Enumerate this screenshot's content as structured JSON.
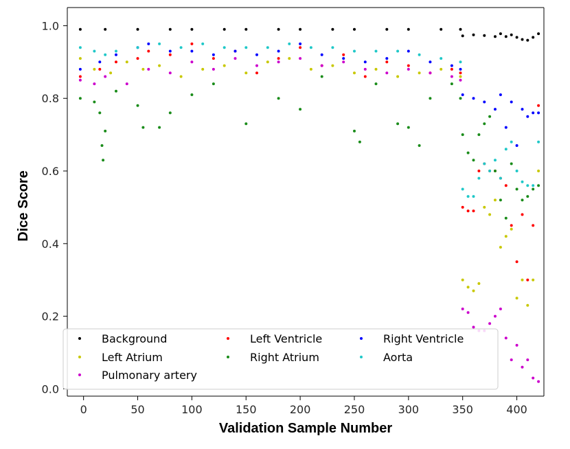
{
  "chart_data": {
    "type": "scatter",
    "xlabel": "Validation Sample Number",
    "ylabel": "Dice Score",
    "xlim": [
      -15,
      425
    ],
    "ylim": [
      -0.02,
      1.05
    ],
    "x_ticks": [
      0,
      50,
      100,
      150,
      200,
      250,
      300,
      350,
      400
    ],
    "x_tick_labels": [
      "0",
      "50",
      "100",
      "150",
      "200",
      "250",
      "300",
      "350",
      "400"
    ],
    "y_ticks": [
      0.0,
      0.2,
      0.4,
      0.6,
      0.8,
      1.0
    ],
    "y_tick_labels": [
      "0.0",
      "0.2",
      "0.4",
      "0.6",
      "0.8",
      "1.0"
    ],
    "grid": false,
    "legend_placement": "lower-left",
    "legend_columns": 3,
    "series": [
      {
        "name": "Background",
        "color": "#000000",
        "marker_size": 2.0,
        "points": [
          [
            -3,
            0.99
          ],
          [
            20,
            0.99
          ],
          [
            50,
            0.99
          ],
          [
            80,
            0.99
          ],
          [
            100,
            0.99
          ],
          [
            130,
            0.99
          ],
          [
            150,
            0.99
          ],
          [
            180,
            0.99
          ],
          [
            200,
            0.99
          ],
          [
            230,
            0.99
          ],
          [
            250,
            0.99
          ],
          [
            280,
            0.99
          ],
          [
            300,
            0.99
          ],
          [
            330,
            0.99
          ],
          [
            348,
            0.99
          ],
          [
            350,
            0.972
          ],
          [
            360,
            0.975
          ],
          [
            370,
            0.973
          ],
          [
            380,
            0.97
          ],
          [
            385,
            0.978
          ],
          [
            390,
            0.97
          ],
          [
            395,
            0.975
          ],
          [
            400,
            0.968
          ],
          [
            405,
            0.962
          ],
          [
            410,
            0.96
          ],
          [
            415,
            0.968
          ],
          [
            420,
            0.978
          ]
        ]
      },
      {
        "name": "Left Ventricle",
        "color": "#ff0000",
        "marker_size": 2.0,
        "points": [
          [
            -3,
            0.86
          ],
          [
            15,
            0.88
          ],
          [
            30,
            0.9
          ],
          [
            50,
            0.91
          ],
          [
            60,
            0.93
          ],
          [
            80,
            0.92
          ],
          [
            100,
            0.95
          ],
          [
            120,
            0.91
          ],
          [
            140,
            0.93
          ],
          [
            160,
            0.87
          ],
          [
            180,
            0.91
          ],
          [
            200,
            0.94
          ],
          [
            220,
            0.89
          ],
          [
            240,
            0.92
          ],
          [
            260,
            0.86
          ],
          [
            280,
            0.9
          ],
          [
            300,
            0.89
          ],
          [
            320,
            0.87
          ],
          [
            340,
            0.88
          ],
          [
            348,
            0.87
          ],
          [
            350,
            0.5
          ],
          [
            355,
            0.49
          ],
          [
            360,
            0.49
          ],
          [
            365,
            0.6
          ],
          [
            370,
            0.62
          ],
          [
            375,
            0.6
          ],
          [
            380,
            0.6
          ],
          [
            385,
            0.58
          ],
          [
            390,
            0.56
          ],
          [
            395,
            0.45
          ],
          [
            400,
            0.35
          ],
          [
            405,
            0.48
          ],
          [
            410,
            0.3
          ],
          [
            415,
            0.45
          ],
          [
            420,
            0.78
          ]
        ]
      },
      {
        "name": "Right Ventricle",
        "color": "#0000ff",
        "marker_size": 2.0,
        "points": [
          [
            -3,
            0.88
          ],
          [
            15,
            0.9
          ],
          [
            30,
            0.92
          ],
          [
            50,
            0.94
          ],
          [
            60,
            0.95
          ],
          [
            80,
            0.93
          ],
          [
            100,
            0.93
          ],
          [
            120,
            0.92
          ],
          [
            140,
            0.93
          ],
          [
            160,
            0.92
          ],
          [
            180,
            0.93
          ],
          [
            200,
            0.95
          ],
          [
            220,
            0.92
          ],
          [
            240,
            0.91
          ],
          [
            260,
            0.9
          ],
          [
            280,
            0.91
          ],
          [
            300,
            0.93
          ],
          [
            320,
            0.9
          ],
          [
            340,
            0.89
          ],
          [
            348,
            0.88
          ],
          [
            350,
            0.81
          ],
          [
            360,
            0.8
          ],
          [
            370,
            0.79
          ],
          [
            380,
            0.77
          ],
          [
            385,
            0.81
          ],
          [
            390,
            0.72
          ],
          [
            395,
            0.79
          ],
          [
            400,
            0.67
          ],
          [
            405,
            0.77
          ],
          [
            410,
            0.75
          ],
          [
            415,
            0.76
          ],
          [
            420,
            0.76
          ]
        ]
      },
      {
        "name": "Left Atrium",
        "color": "#c8c800",
        "marker_size": 2.0,
        "points": [
          [
            -3,
            0.91
          ],
          [
            10,
            0.88
          ],
          [
            25,
            0.87
          ],
          [
            40,
            0.9
          ],
          [
            55,
            0.88
          ],
          [
            70,
            0.89
          ],
          [
            90,
            0.86
          ],
          [
            110,
            0.88
          ],
          [
            130,
            0.89
          ],
          [
            150,
            0.87
          ],
          [
            170,
            0.9
          ],
          [
            190,
            0.91
          ],
          [
            210,
            0.88
          ],
          [
            230,
            0.89
          ],
          [
            250,
            0.87
          ],
          [
            270,
            0.88
          ],
          [
            290,
            0.86
          ],
          [
            310,
            0.87
          ],
          [
            330,
            0.88
          ],
          [
            348,
            0.86
          ],
          [
            350,
            0.3
          ],
          [
            355,
            0.28
          ],
          [
            360,
            0.27
          ],
          [
            365,
            0.29
          ],
          [
            370,
            0.5
          ],
          [
            375,
            0.48
          ],
          [
            380,
            0.52
          ],
          [
            385,
            0.39
          ],
          [
            390,
            0.42
          ],
          [
            395,
            0.44
          ],
          [
            400,
            0.25
          ],
          [
            405,
            0.3
          ],
          [
            410,
            0.23
          ],
          [
            415,
            0.3
          ],
          [
            420,
            0.6
          ]
        ]
      },
      {
        "name": "Right Atrium",
        "color": "#1a8c1a",
        "marker_size": 2.0,
        "points": [
          [
            -3,
            0.8
          ],
          [
            10,
            0.79
          ],
          [
            15,
            0.76
          ],
          [
            17,
            0.67
          ],
          [
            18,
            0.63
          ],
          [
            20,
            0.71
          ],
          [
            30,
            0.82
          ],
          [
            50,
            0.78
          ],
          [
            55,
            0.72
          ],
          [
            70,
            0.72
          ],
          [
            80,
            0.76
          ],
          [
            100,
            0.81
          ],
          [
            120,
            0.84
          ],
          [
            150,
            0.73
          ],
          [
            180,
            0.8
          ],
          [
            200,
            0.77
          ],
          [
            220,
            0.86
          ],
          [
            250,
            0.71
          ],
          [
            255,
            0.68
          ],
          [
            270,
            0.84
          ],
          [
            290,
            0.73
          ],
          [
            300,
            0.72
          ],
          [
            310,
            0.67
          ],
          [
            320,
            0.8
          ],
          [
            340,
            0.84
          ],
          [
            348,
            0.8
          ],
          [
            350,
            0.7
          ],
          [
            355,
            0.65
          ],
          [
            360,
            0.63
          ],
          [
            365,
            0.7
          ],
          [
            370,
            0.73
          ],
          [
            375,
            0.75
          ],
          [
            380,
            0.6
          ],
          [
            385,
            0.52
          ],
          [
            390,
            0.47
          ],
          [
            395,
            0.62
          ],
          [
            400,
            0.55
          ],
          [
            405,
            0.52
          ],
          [
            410,
            0.53
          ],
          [
            415,
            0.55
          ],
          [
            420,
            0.56
          ]
        ]
      },
      {
        "name": "Aorta",
        "color": "#1fc8c8",
        "marker_size": 2.0,
        "points": [
          [
            -3,
            0.94
          ],
          [
            10,
            0.93
          ],
          [
            20,
            0.92
          ],
          [
            30,
            0.93
          ],
          [
            50,
            0.94
          ],
          [
            70,
            0.95
          ],
          [
            90,
            0.94
          ],
          [
            110,
            0.95
          ],
          [
            130,
            0.94
          ],
          [
            150,
            0.94
          ],
          [
            170,
            0.94
          ],
          [
            190,
            0.95
          ],
          [
            210,
            0.94
          ],
          [
            230,
            0.94
          ],
          [
            250,
            0.93
          ],
          [
            270,
            0.93
          ],
          [
            290,
            0.93
          ],
          [
            310,
            0.92
          ],
          [
            330,
            0.91
          ],
          [
            348,
            0.9
          ],
          [
            350,
            0.55
          ],
          [
            355,
            0.53
          ],
          [
            360,
            0.53
          ],
          [
            365,
            0.58
          ],
          [
            370,
            0.62
          ],
          [
            375,
            0.6
          ],
          [
            380,
            0.63
          ],
          [
            385,
            0.58
          ],
          [
            390,
            0.66
          ],
          [
            395,
            0.68
          ],
          [
            400,
            0.6
          ],
          [
            405,
            0.57
          ],
          [
            410,
            0.56
          ],
          [
            415,
            0.56
          ],
          [
            420,
            0.68
          ]
        ]
      },
      {
        "name": "Pulmonary artery",
        "color": "#cc00cc",
        "marker_size": 2.0,
        "points": [
          [
            -3,
            0.85
          ],
          [
            10,
            0.84
          ],
          [
            20,
            0.86
          ],
          [
            40,
            0.84
          ],
          [
            60,
            0.88
          ],
          [
            80,
            0.87
          ],
          [
            100,
            0.9
          ],
          [
            120,
            0.88
          ],
          [
            140,
            0.91
          ],
          [
            160,
            0.89
          ],
          [
            180,
            0.9
          ],
          [
            200,
            0.91
          ],
          [
            220,
            0.89
          ],
          [
            240,
            0.9
          ],
          [
            260,
            0.88
          ],
          [
            280,
            0.87
          ],
          [
            300,
            0.88
          ],
          [
            320,
            0.87
          ],
          [
            340,
            0.86
          ],
          [
            348,
            0.85
          ],
          [
            350,
            0.22
          ],
          [
            355,
            0.21
          ],
          [
            360,
            0.17
          ],
          [
            365,
            0.16
          ],
          [
            370,
            0.16
          ],
          [
            375,
            0.18
          ],
          [
            380,
            0.2
          ],
          [
            385,
            0.22
          ],
          [
            390,
            0.14
          ],
          [
            395,
            0.08
          ],
          [
            400,
            0.12
          ],
          [
            405,
            0.06
          ],
          [
            410,
            0.08
          ],
          [
            415,
            0.03
          ],
          [
            420,
            0.02
          ]
        ]
      }
    ]
  }
}
